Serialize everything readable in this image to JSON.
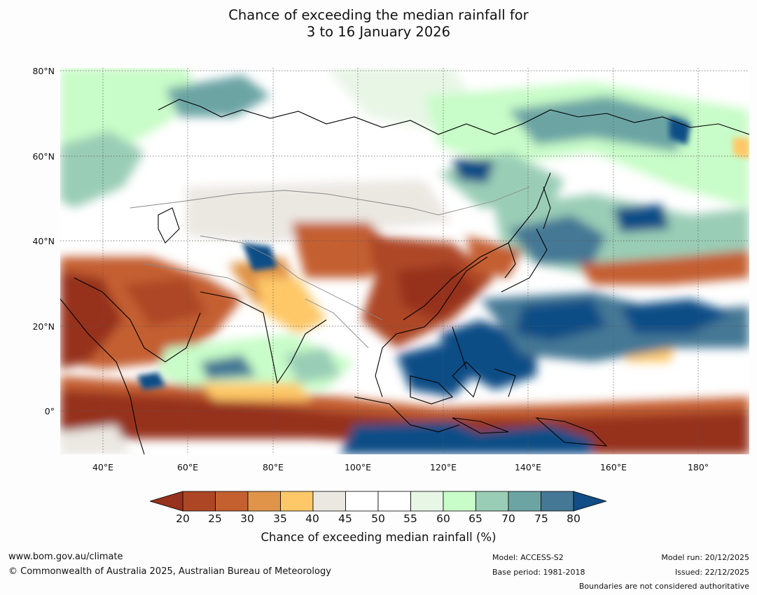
{
  "title": {
    "line1": "Chance of exceeding the median rainfall for",
    "line2": "3 to 16 January 2026"
  },
  "map": {
    "lat_labels": [
      "80°N",
      "60°N",
      "40°N",
      "20°N",
      "0°"
    ],
    "lon_labels": [
      "40°E",
      "60°E",
      "80°E",
      "100°E",
      "120°E",
      "140°E",
      "160°E",
      "180°"
    ],
    "lat_range": [
      -10,
      80
    ],
    "lon_range": [
      30,
      192
    ],
    "gridlines": true
  },
  "colorbar": {
    "label": "Chance of exceeding median rainfall (%)",
    "ticks": [
      "20",
      "25",
      "30",
      "35",
      "40",
      "45",
      "50",
      "55",
      "60",
      "65",
      "70",
      "75",
      "80"
    ],
    "colors": {
      "under": "#96321e",
      "bins": [
        "#ad4625",
        "#c45f30",
        "#e0944a",
        "#fec868",
        "#ebe8e2",
        "#ffffff",
        "#ffffff",
        "#e8f6e6",
        "#c8fcc8",
        "#9acdb6",
        "#6ca4a4",
        "#457895"
      ],
      "over": "#114d86"
    }
  },
  "footer": {
    "website": "www.bom.gov.au/climate",
    "copyright": "© Commonwealth of Australia 2025, Australian Bureau of Meteorology",
    "model": "Model: ACCESS-S2",
    "base_period": "Base period: 1981-2018",
    "model_run": "Model run: 20/12/2025",
    "issued": "Issued: 22/12/2025",
    "disclaimer": "Boundaries are not considered authoritative"
  }
}
